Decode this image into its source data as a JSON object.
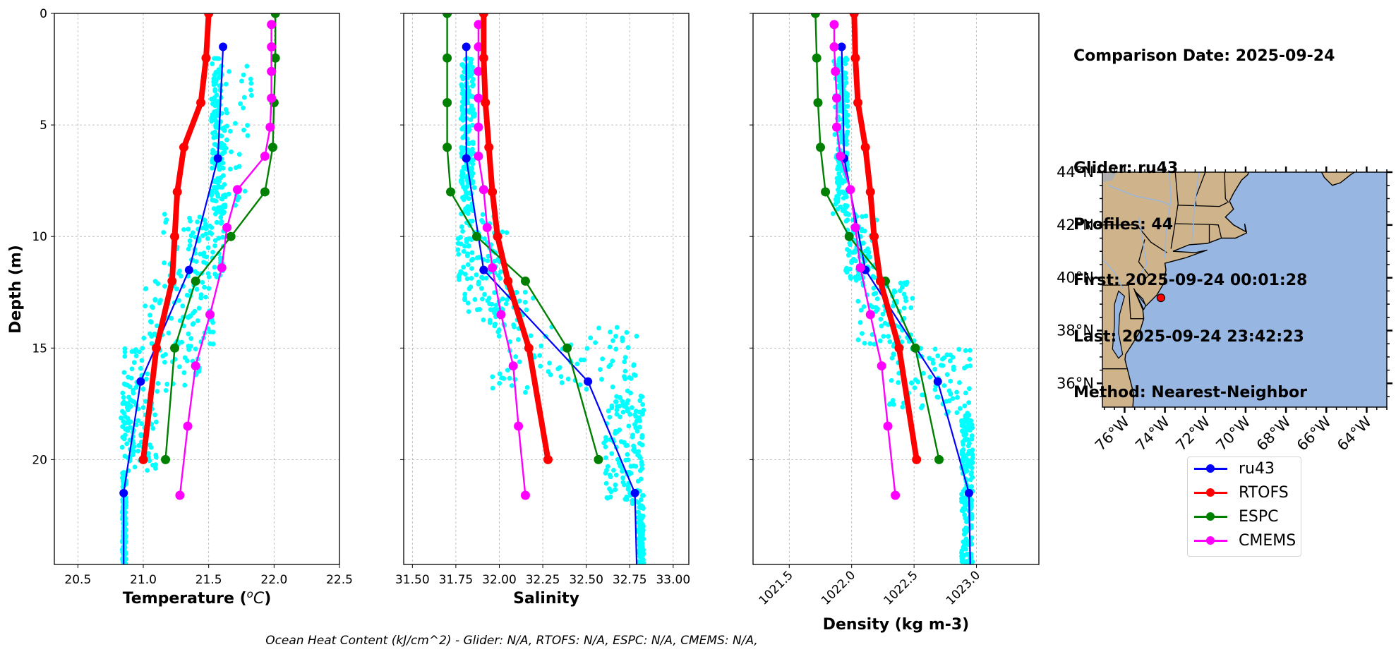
{
  "info": {
    "comparison_date": "Comparison Date: 2025-09-24",
    "glider": "Glider: ru43",
    "profiles": "Profiles: 44",
    "first": "First: 2025-09-24 00:01:28",
    "last": "Last: 2025-09-24 23:42:23",
    "method": "Method: Nearest-Neighbor"
  },
  "footer": "Ocean Heat Content (kJ/cm^2) - Glider: N/A,  RTOFS: N/A,  ESPC: N/A,  CMEMS: N/A,",
  "legend": [
    {
      "name": "ru43",
      "color": "#0000ff"
    },
    {
      "name": "RTOFS",
      "color": "#ff0000"
    },
    {
      "name": "ESPC",
      "color": "#008000"
    },
    {
      "name": "CMEMS",
      "color": "#ff00ff"
    }
  ],
  "colors": {
    "raw_glider_scatter": "#00ffff",
    "ru43": "#0000ff",
    "RTOFS": "#ff0000",
    "ESPC": "#008000",
    "CMEMS": "#ff00ff",
    "land": "#cfb38b",
    "ocean": "#97b6e1",
    "lakes_rivers": "#97b6e1",
    "glider_marker": "#ff0000"
  },
  "chart_data": [
    {
      "type": "line",
      "title": "",
      "xlabel": "Temperature (°C)",
      "ylabel": "Depth (m)",
      "xlim": [
        20.32,
        22.5
      ],
      "ylim": [
        24.7,
        0
      ],
      "y_inverted": true,
      "grid": true,
      "xticks": [
        "20.5",
        "21.0",
        "21.5",
        "22.0",
        "22.5"
      ],
      "xtick_values": [
        20.5,
        21.0,
        21.5,
        22.0,
        22.5
      ],
      "yticks": [
        "0",
        "5",
        "10",
        "15",
        "20"
      ],
      "ytick_values": [
        0,
        5,
        10,
        15,
        20
      ],
      "series": [
        {
          "name": "ru43",
          "depth": [
            1.5,
            6.5,
            11.5,
            16.5,
            21.5,
            24.7
          ],
          "values": [
            21.61,
            21.57,
            21.35,
            20.98,
            20.85,
            20.85
          ],
          "markers_on": [
            0,
            1,
            2,
            3,
            4
          ]
        },
        {
          "name": "RTOFS",
          "depth": [
            0,
            2,
            4,
            6,
            8,
            10,
            12,
            15,
            20
          ],
          "values": [
            21.5,
            21.48,
            21.44,
            21.31,
            21.26,
            21.24,
            21.22,
            21.1,
            21.0
          ]
        },
        {
          "name": "ESPC",
          "depth": [
            0,
            2,
            4,
            6,
            8,
            10,
            12,
            15,
            20
          ],
          "values": [
            22.01,
            22.01,
            22.0,
            21.99,
            21.93,
            21.67,
            21.4,
            21.24,
            21.17
          ]
        },
        {
          "name": "CMEMS",
          "depth": [
            0.5,
            1.5,
            2.6,
            3.8,
            5.1,
            6.4,
            7.9,
            9.6,
            11.4,
            13.5,
            15.8,
            18.5,
            21.6
          ],
          "values": [
            21.98,
            21.98,
            21.98,
            21.98,
            21.97,
            21.93,
            21.72,
            21.64,
            21.6,
            21.51,
            21.4,
            21.34,
            21.28
          ]
        }
      ],
      "raw_scatter_envelope": [
        {
          "depth": [
            2,
            5
          ],
          "range": [
            21.52,
            21.6
          ],
          "outliers": [
            21.6,
            21.85
          ]
        },
        {
          "depth": [
            5,
            9
          ],
          "range": [
            21.52,
            21.63
          ],
          "outliers": [
            21.6,
            21.8
          ]
        },
        {
          "depth": [
            9,
            12
          ],
          "range": [
            21.35,
            21.62
          ],
          "outliers": [
            21.15,
            21.35
          ]
        },
        {
          "depth": [
            12,
            15
          ],
          "range": [
            21.05,
            21.55
          ],
          "outliers": [
            21.0,
            21.1
          ]
        },
        {
          "depth": [
            15,
            17
          ],
          "range": [
            20.85,
            21.45
          ],
          "outliers": [
            20.85,
            21.0
          ]
        },
        {
          "depth": [
            17,
            20.5
          ],
          "range": [
            20.83,
            21.1
          ],
          "outliers": [
            20.83,
            20.9
          ]
        },
        {
          "depth": [
            20.5,
            24.7
          ],
          "range": [
            20.84,
            20.87
          ],
          "outliers": [
            20.84,
            20.87
          ]
        }
      ]
    },
    {
      "type": "line",
      "title": "",
      "xlabel": "Salinity",
      "ylabel": "",
      "xlim": [
        31.45,
        33.09
      ],
      "ylim": [
        24.7,
        0
      ],
      "y_inverted": true,
      "grid": true,
      "xticks": [
        "31.50",
        "31.75",
        "32.00",
        "32.25",
        "32.50",
        "32.75",
        "33.00"
      ],
      "xtick_values": [
        31.5,
        31.75,
        32.0,
        32.25,
        32.5,
        32.75,
        33.0
      ],
      "yticks": [
        "",
        "",
        "",
        "",
        ""
      ],
      "ytick_values": [
        0,
        5,
        10,
        15,
        20
      ],
      "series": [
        {
          "name": "ru43",
          "depth": [
            1.5,
            6.5,
            11.5,
            16.5,
            21.5,
            24.7
          ],
          "values": [
            31.81,
            31.81,
            31.91,
            32.51,
            32.78,
            32.79
          ],
          "markers_on": [
            0,
            1,
            2,
            3,
            4
          ]
        },
        {
          "name": "RTOFS",
          "depth": [
            0,
            2,
            4,
            6,
            8,
            10,
            12,
            15,
            20
          ],
          "values": [
            31.91,
            31.91,
            31.92,
            31.94,
            31.96,
            31.99,
            32.05,
            32.17,
            32.28
          ]
        },
        {
          "name": "ESPC",
          "depth": [
            0,
            2,
            4,
            6,
            8,
            10,
            12,
            15,
            20
          ],
          "values": [
            31.7,
            31.7,
            31.7,
            31.7,
            31.72,
            31.87,
            32.15,
            32.39,
            32.57
          ]
        },
        {
          "name": "CMEMS",
          "depth": [
            0.5,
            1.5,
            2.6,
            3.8,
            5.1,
            6.4,
            7.9,
            9.6,
            11.4,
            13.5,
            15.8,
            18.5,
            21.6
          ],
          "values": [
            31.88,
            31.88,
            31.88,
            31.88,
            31.88,
            31.88,
            31.91,
            31.93,
            31.96,
            32.01,
            32.08,
            32.11,
            32.15
          ]
        }
      ],
      "raw_scatter_envelope": [
        {
          "depth": [
            2,
            9
          ],
          "range": [
            31.78,
            31.85
          ],
          "outliers": [
            31.78,
            31.86
          ]
        },
        {
          "depth": [
            9,
            12
          ],
          "range": [
            31.76,
            31.98
          ],
          "outliers": [
            31.95,
            32.05
          ]
        },
        {
          "depth": [
            12,
            14
          ],
          "range": [
            31.8,
            32.1
          ],
          "outliers": [
            32.0,
            32.2
          ]
        },
        {
          "depth": [
            14,
            17
          ],
          "range": [
            31.95,
            32.8
          ],
          "outliers": [
            32.3,
            32.8
          ]
        },
        {
          "depth": [
            17,
            22
          ],
          "range": [
            32.6,
            32.83
          ],
          "outliers": [
            32.7,
            32.83
          ]
        },
        {
          "depth": [
            22,
            24.7
          ],
          "range": [
            32.8,
            32.83
          ],
          "outliers": [
            32.8,
            32.83
          ]
        }
      ]
    },
    {
      "type": "line",
      "title": "",
      "xlabel": "Density (kg m-3)",
      "ylabel": "",
      "xlim": [
        1021.21,
        1023.5
      ],
      "ylim": [
        24.7,
        0
      ],
      "y_inverted": true,
      "grid": true,
      "xticks": [
        "1021.5",
        "1022.0",
        "1022.5",
        "1023.0"
      ],
      "xtick_values": [
        1021.5,
        1022.0,
        1022.5,
        1023.0
      ],
      "xtick_rotation_deg": 45,
      "yticks": [
        "",
        "",
        "",
        "",
        ""
      ],
      "ytick_values": [
        0,
        5,
        10,
        15,
        20
      ],
      "series": [
        {
          "name": "ru43",
          "depth": [
            1.5,
            6.5,
            11.5,
            16.5,
            21.5,
            24.7
          ],
          "values": [
            1021.92,
            1021.94,
            1022.11,
            1022.69,
            1022.94,
            1022.95
          ],
          "markers_on": [
            0,
            1,
            2,
            3,
            4
          ]
        },
        {
          "name": "RTOFS",
          "depth": [
            0,
            2,
            4,
            6,
            8,
            10,
            12,
            15,
            20
          ],
          "values": [
            1022.02,
            1022.03,
            1022.05,
            1022.11,
            1022.15,
            1022.18,
            1022.23,
            1022.38,
            1022.52
          ]
        },
        {
          "name": "ESPC",
          "depth": [
            0,
            2,
            4,
            6,
            8,
            10,
            12,
            15,
            20
          ],
          "values": [
            1021.71,
            1021.72,
            1021.73,
            1021.75,
            1021.79,
            1021.98,
            1022.27,
            1022.51,
            1022.7
          ]
        },
        {
          "name": "CMEMS",
          "depth": [
            0.5,
            1.5,
            2.6,
            3.8,
            5.1,
            6.4,
            7.9,
            9.6,
            11.4,
            13.5,
            15.8,
            18.5,
            21.6
          ],
          "values": [
            1021.86,
            1021.86,
            1021.87,
            1021.88,
            1021.88,
            1021.91,
            1021.99,
            1022.03,
            1022.07,
            1022.15,
            1022.24,
            1022.29,
            1022.35
          ]
        }
      ],
      "raw_scatter_envelope": [
        {
          "depth": [
            2,
            9
          ],
          "range": [
            1021.88,
            1021.97
          ],
          "outliers": [
            1021.85,
            1021.97
          ]
        },
        {
          "depth": [
            9,
            12
          ],
          "range": [
            1021.95,
            1022.1
          ],
          "outliers": [
            1022.1,
            1022.2
          ]
        },
        {
          "depth": [
            12,
            15
          ],
          "range": [
            1022.05,
            1022.45
          ],
          "outliers": [
            1022.3,
            1022.5
          ]
        },
        {
          "depth": [
            15,
            18
          ],
          "range": [
            1022.3,
            1022.95
          ],
          "outliers": [
            1022.5,
            1022.95
          ]
        },
        {
          "depth": [
            18,
            24.7
          ],
          "range": [
            1022.88,
            1022.97
          ],
          "outliers": [
            1022.9,
            1022.97
          ]
        }
      ]
    },
    {
      "type": "map",
      "extent_lon": [
        -77.1,
        -63.0
      ],
      "extent_lat": [
        35.1,
        44.0
      ],
      "lon_ticks": [
        "76°W",
        "74°W",
        "72°W",
        "70°W",
        "68°W",
        "66°W",
        "64°W"
      ],
      "lon_tick_values": [
        -76,
        -74,
        -72,
        -70,
        -68,
        -66,
        -64
      ],
      "lat_ticks": [
        "44°N",
        "42°N",
        "40°N",
        "38°N",
        "36°N"
      ],
      "lat_tick_values": [
        44,
        42,
        40,
        38,
        36
      ],
      "glider_location": {
        "lon": -74.2,
        "lat": 39.24
      }
    }
  ]
}
